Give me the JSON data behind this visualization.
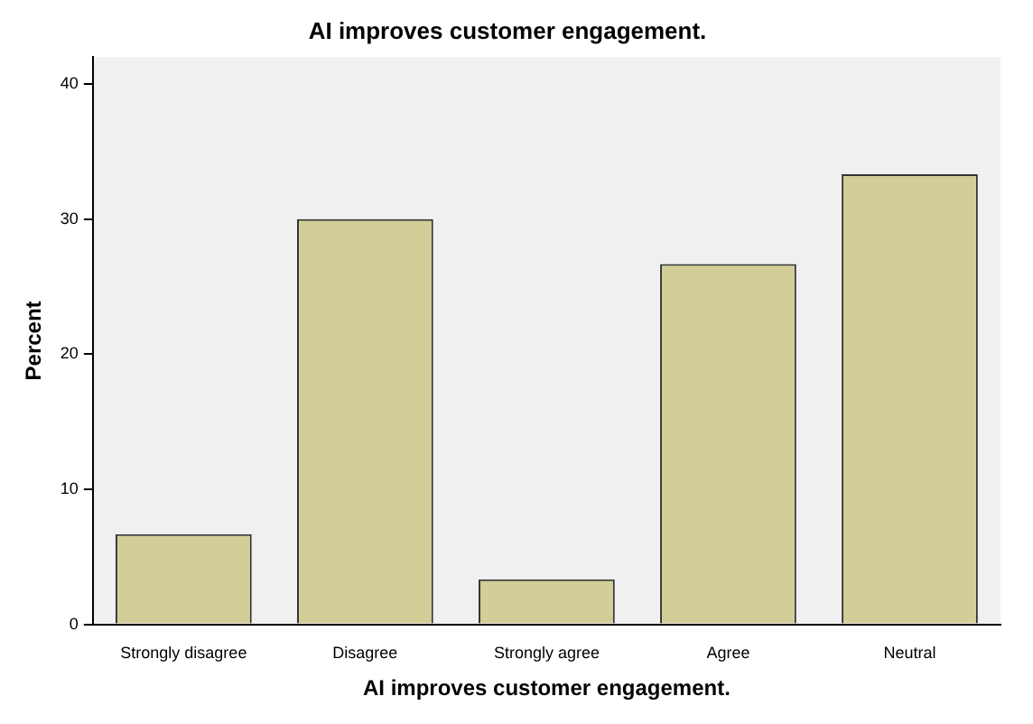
{
  "chart_data": {
    "type": "bar",
    "title": "AI improves customer engagement.",
    "xlabel": "AI improves customer engagement.",
    "ylabel": "Percent",
    "categories": [
      "Strongly disagree",
      "Disagree",
      "Strongly agree",
      "Agree",
      "Neutral"
    ],
    "values": [
      6.67,
      30,
      3.33,
      26.67,
      33.33
    ],
    "color": "#d3ce97",
    "ylim": [
      0,
      42
    ],
    "yticks": [
      0,
      10,
      20,
      30,
      40
    ],
    "grid": false,
    "legend": false
  }
}
